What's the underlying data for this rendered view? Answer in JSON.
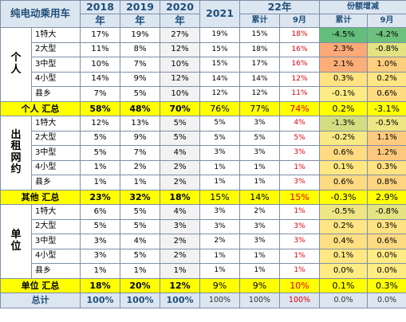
{
  "header": {
    "corner": "纯电动乘用车",
    "y2018": "2018",
    "y2019": "2019",
    "y2020": "2020",
    "y2021": "2021",
    "year_suffix": "年",
    "y22": "22年",
    "cumulative": "累计",
    "sep": "9月",
    "share_change": "份额增减",
    "cumulative2": "累计",
    "sep2": "9月"
  },
  "groups": [
    {
      "name": "个人",
      "rows": [
        {
          "label": "1特大",
          "v2018": "17%",
          "v2019": "19%",
          "v2020": "27%",
          "v2021": "19%",
          "cum22": "15%",
          "sep22": "18%",
          "d_cum": "-4.5%",
          "d_sep": "-4.2%"
        },
        {
          "label": "2大型",
          "v2018": "11%",
          "v2019": "8%",
          "v2020": "12%",
          "v2021": "15%",
          "cum22": "18%",
          "sep22": "16%",
          "d_cum": "2.3%",
          "d_sep": "-0.8%"
        },
        {
          "label": "3中型",
          "v2018": "10%",
          "v2019": "7%",
          "v2020": "10%",
          "v2021": "15%",
          "cum22": "17%",
          "sep22": "16%",
          "d_cum": "2.1%",
          "d_sep": "1.0%"
        },
        {
          "label": "4小型",
          "v2018": "14%",
          "v2019": "9%",
          "v2020": "12%",
          "v2021": "14%",
          "cum22": "14%",
          "sep22": "12%",
          "d_cum": "0.3%",
          "d_sep": "0.2%"
        },
        {
          "label": "县乡",
          "v2018": "7%",
          "v2019": "5%",
          "v2020": "10%",
          "v2021": "12%",
          "cum22": "12%",
          "sep22": "11%",
          "d_cum": "-0.1%",
          "d_sep": "0.6%"
        }
      ],
      "summary": {
        "label": "个人 汇总",
        "v2018": "58%",
        "v2019": "48%",
        "v2020": "70%",
        "v2021": "76%",
        "cum22": "77%",
        "sep22": "74%",
        "d_cum": "0.2%",
        "d_sep": "-3.1%"
      }
    },
    {
      "name": "出租网约",
      "rows": [
        {
          "label": "1特大",
          "v2018": "12%",
          "v2019": "13%",
          "v2020": "5%",
          "v2021": "5%",
          "cum22": "3%",
          "sep22": "4%",
          "d_cum": "-1.3%",
          "d_sep": "-0.5%"
        },
        {
          "label": "2大型",
          "v2018": "5%",
          "v2019": "9%",
          "v2020": "5%",
          "v2021": "5%",
          "cum22": "5%",
          "sep22": "5%",
          "d_cum": "-0.2%",
          "d_sep": "1.1%"
        },
        {
          "label": "3中型",
          "v2018": "5%",
          "v2019": "7%",
          "v2020": "4%",
          "v2021": "3%",
          "cum22": "3%",
          "sep22": "3%",
          "d_cum": "0.6%",
          "d_sep": "1.2%"
        },
        {
          "label": "4小型",
          "v2018": "1%",
          "v2019": "2%",
          "v2020": "2%",
          "v2021": "1%",
          "cum22": "1%",
          "sep22": "1%",
          "d_cum": "0.1%",
          "d_sep": "0.3%"
        },
        {
          "label": "县乡",
          "v2018": "1%",
          "v2019": "1%",
          "v2020": "2%",
          "v2021": "1%",
          "cum22": "1%",
          "sep22": "3%",
          "d_cum": "0.6%",
          "d_sep": "0.8%"
        }
      ],
      "summary": {
        "label": "其他 汇总",
        "v2018": "23%",
        "v2019": "32%",
        "v2020": "18%",
        "v2021": "15%",
        "cum22": "14%",
        "sep22": "15%",
        "d_cum": "-0.3%",
        "d_sep": "2.9%"
      }
    },
    {
      "name": "单位",
      "rows": [
        {
          "label": "1特大",
          "v2018": "6%",
          "v2019": "5%",
          "v2020": "4%",
          "v2021": "3%",
          "cum22": "2%",
          "sep22": "1%",
          "d_cum": "-0.5%",
          "d_sep": "-0.8%"
        },
        {
          "label": "2大型",
          "v2018": "5%",
          "v2019": "5%",
          "v2020": "3%",
          "v2021": "3%",
          "cum22": "3%",
          "sep22": "3%",
          "d_cum": "0.2%",
          "d_sep": "0.3%"
        },
        {
          "label": "3中型",
          "v2018": "3%",
          "v2019": "4%",
          "v2020": "2%",
          "v2021": "2%",
          "cum22": "3%",
          "sep22": "3%",
          "d_cum": "0.4%",
          "d_sep": "0.6%"
        },
        {
          "label": "4小型",
          "v2018": "3%",
          "v2019": "5%",
          "v2020": "2%",
          "v2021": "1%",
          "cum22": "1%",
          "sep22": "1%",
          "d_cum": "0.1%",
          "d_sep": "0.0%"
        },
        {
          "label": "县乡",
          "v2018": "1%",
          "v2019": "1%",
          "v2020": "1%",
          "v2021": "1%",
          "cum22": "1%",
          "sep22": "1%",
          "d_cum": "0.0%",
          "d_sep": "0.0%"
        }
      ],
      "summary": {
        "label": "单位 汇总",
        "v2018": "18%",
        "v2019": "20%",
        "v2020": "12%",
        "v2021": "9%",
        "cum22": "9%",
        "sep22": "10%",
        "d_cum": "0.1%",
        "d_sep": "0.3%"
      }
    }
  ],
  "total": {
    "label": "总计",
    "v2018": "100%",
    "v2019": "100%",
    "v2020": "100%",
    "v2021": "100%",
    "cum22": "100%",
    "sep22": "100%",
    "d_cum": "0.0%",
    "d_sep": "0.0%"
  },
  "heat_colors": {
    "negative_strong": "#63be7b",
    "neutral": "#ffeb84",
    "positive_strong": "#f8696b"
  },
  "highlight_colors": {
    "summary_row": "#ffff00",
    "header": "#dce6f1",
    "red_text": "#e0000a"
  }
}
